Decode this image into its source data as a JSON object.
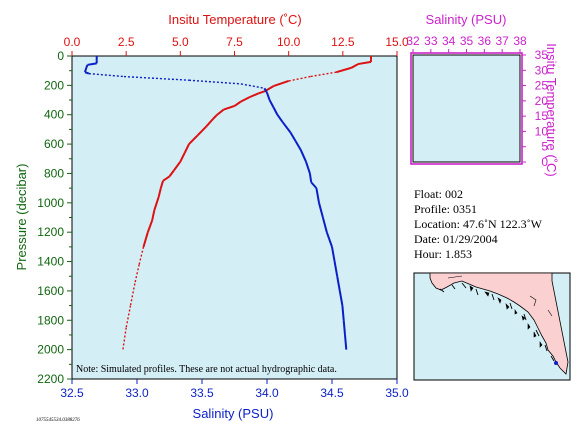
{
  "colors": {
    "temperature": "#dd1111",
    "salinity": "#0a1fc8",
    "pressure_axis": "#116611",
    "ts_axis": "#cc22cc",
    "plot_bg": "#d4eef5",
    "land": "#fbd0d0",
    "water": "#d4eef5"
  },
  "chart_data": [
    {
      "type": "line",
      "title": "",
      "y_axis": {
        "label": "Pressure (decibar)",
        "range": [
          2200,
          0
        ],
        "ticks": [
          0,
          200,
          400,
          600,
          800,
          1000,
          1200,
          1400,
          1600,
          1800,
          2000,
          2200
        ]
      },
      "x_axis_top": {
        "label": "Insitu Temperature (˚C)",
        "range": [
          0,
          15
        ],
        "ticks": [
          "0.0",
          "2.5",
          "5.0",
          "7.5",
          "10.0",
          "12.5",
          "15.0"
        ]
      },
      "x_axis_bottom": {
        "label": "Salinity (PSU)",
        "range": [
          32.5,
          35.0
        ],
        "ticks": [
          "32.5",
          "33.0",
          "33.5",
          "34.0",
          "34.5",
          "35.0"
        ]
      },
      "grid": false,
      "note": "Note: Simulated profiles.  These are not actual hydrographic data.",
      "series": [
        {
          "variable": "temperature",
          "axis": "top",
          "points": [
            [
              13.8,
              0
            ],
            [
              13.8,
              25
            ],
            [
              13.8,
              40
            ],
            [
              13.2,
              55
            ],
            [
              12.9,
              80
            ],
            [
              12.2,
              110
            ],
            [
              11.0,
              140
            ],
            [
              10.0,
              170
            ],
            [
              9.3,
              205
            ],
            [
              8.9,
              240
            ],
            [
              8.6,
              255
            ],
            [
              8.2,
              280
            ],
            [
              7.8,
              310
            ],
            [
              7.5,
              340
            ],
            [
              7.0,
              365
            ],
            [
              6.7,
              400
            ],
            [
              6.5,
              430
            ],
            [
              6.2,
              480
            ],
            [
              5.8,
              540
            ],
            [
              5.4,
              600
            ],
            [
              5.2,
              660
            ],
            [
              5.0,
              720
            ],
            [
              4.7,
              780
            ],
            [
              4.5,
              820
            ],
            [
              4.2,
              850
            ],
            [
              4.1,
              900
            ],
            [
              4.0,
              960
            ],
            [
              3.8,
              1050
            ],
            [
              3.7,
              1120
            ],
            [
              3.5,
              1200
            ],
            [
              3.3,
              1300
            ],
            [
              3.1,
              1420
            ],
            [
              2.9,
              1550
            ],
            [
              2.7,
              1700
            ],
            [
              2.5,
              1850
            ],
            [
              2.35,
              2000
            ]
          ]
        },
        {
          "variable": "salinity",
          "axis": "bottom",
          "points": [
            [
              32.69,
              0
            ],
            [
              32.69,
              30
            ],
            [
              32.69,
              50
            ],
            [
              32.62,
              60
            ],
            [
              32.61,
              80
            ],
            [
              32.6,
              110
            ],
            [
              32.63,
              120
            ],
            [
              32.9,
              140
            ],
            [
              33.4,
              165
            ],
            [
              33.8,
              190
            ],
            [
              33.98,
              220
            ],
            [
              34.0,
              250
            ],
            [
              34.02,
              300
            ],
            [
              34.05,
              350
            ],
            [
              34.08,
              400
            ],
            [
              34.12,
              450
            ],
            [
              34.18,
              520
            ],
            [
              34.22,
              580
            ],
            [
              34.26,
              640
            ],
            [
              34.3,
              720
            ],
            [
              34.33,
              800
            ],
            [
              34.34,
              860
            ],
            [
              34.38,
              900
            ],
            [
              34.4,
              1000
            ],
            [
              34.43,
              1100
            ],
            [
              34.46,
              1200
            ],
            [
              34.5,
              1300
            ],
            [
              34.52,
              1400
            ],
            [
              34.54,
              1500
            ],
            [
              34.56,
              1600
            ],
            [
              34.58,
              1700
            ],
            [
              34.59,
              1800
            ],
            [
              34.6,
              1900
            ],
            [
              34.61,
              2000
            ]
          ]
        }
      ]
    },
    {
      "type": "scatter",
      "title": "",
      "x_axis": {
        "label": "Salinity (PSU)",
        "range": [
          32,
          38
        ],
        "ticks": [
          "32",
          "33",
          "34",
          "35",
          "36",
          "37",
          "38"
        ]
      },
      "y_axis": {
        "label": "Insitu Temperature (˚C)",
        "range": [
          0,
          35
        ],
        "ticks": [
          "0",
          "5",
          "10",
          "15",
          "20",
          "25",
          "30",
          "35"
        ]
      },
      "points": []
    }
  ],
  "info": {
    "float": "Float:  002",
    "profile": "Profile:  0351",
    "location": "Location:  47.6˚N  122.3˚W",
    "date": "Date:  01/29/2004",
    "hour": "Hour:  1.853"
  },
  "footer_id": "1075545534.0388276"
}
